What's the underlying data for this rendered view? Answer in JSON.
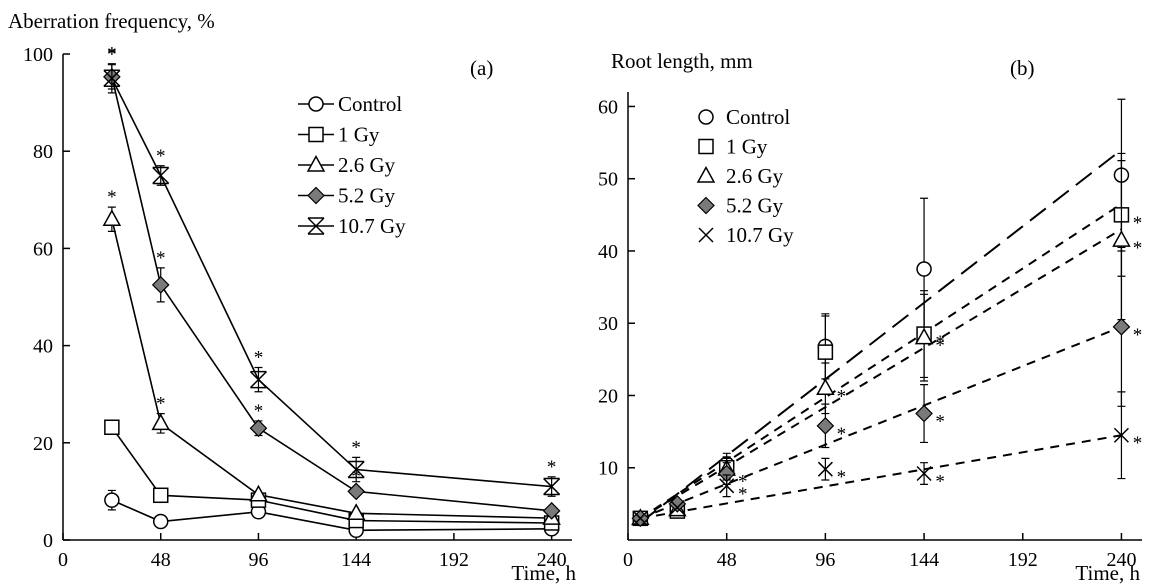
{
  "chart_data": [
    {
      "panel": "(a)",
      "type": "line",
      "ylabel": "Aberration frequency, %",
      "xlabel": "Time, h",
      "xlim": [
        0,
        250
      ],
      "ylim": [
        0,
        100
      ],
      "xticks": [
        0,
        48,
        96,
        144,
        192,
        240
      ],
      "yticks": [
        0,
        20,
        40,
        60,
        80,
        100
      ],
      "legend_position": "top-right",
      "series": [
        {
          "name": "Control",
          "marker": "circle",
          "x": [
            24,
            48,
            96,
            144,
            240
          ],
          "y": [
            8.2,
            3.8,
            5.8,
            2.0,
            2.3
          ],
          "err": [
            2.0,
            0,
            0,
            0,
            0
          ],
          "stars": [
            false,
            false,
            false,
            false,
            false
          ]
        },
        {
          "name": "1 Gy",
          "marker": "square",
          "x": [
            24,
            48,
            96,
            144,
            240
          ],
          "y": [
            23.2,
            9.2,
            8.2,
            4.0,
            3.5
          ],
          "err": [
            0,
            0,
            0,
            0,
            0
          ],
          "stars": [
            false,
            false,
            false,
            false,
            false
          ]
        },
        {
          "name": "2.6 Gy",
          "marker": "triangle",
          "x": [
            24,
            48,
            96,
            144,
            240
          ],
          "y": [
            66.0,
            24.0,
            9.3,
            5.5,
            4.5
          ],
          "err": [
            2.5,
            2.0,
            0,
            0,
            0
          ],
          "stars": [
            true,
            true,
            false,
            false,
            false
          ]
        },
        {
          "name": "5.2 Gy",
          "marker": "diamond",
          "x": [
            24,
            48,
            96,
            144,
            240
          ],
          "y": [
            95.3,
            52.5,
            23.0,
            10.0,
            6.0
          ],
          "err": [
            2.5,
            3.5,
            1.5,
            0,
            0
          ],
          "stars": [
            true,
            true,
            true,
            true,
            false
          ]
        },
        {
          "name": "10.7 Gy",
          "marker": "star-x",
          "x": [
            24,
            48,
            96,
            144,
            240
          ],
          "y": [
            95.0,
            75.0,
            33.0,
            14.5,
            11.0
          ],
          "err": [
            3.0,
            2.0,
            2.5,
            2.5,
            2.0
          ],
          "stars": [
            true,
            true,
            true,
            true,
            true
          ]
        }
      ]
    },
    {
      "panel": "(b)",
      "type": "scatter",
      "ylabel": "Root length, mm",
      "xlabel": "Time, h",
      "xlim": [
        0,
        250
      ],
      "ylim": [
        0,
        62
      ],
      "xticks": [
        0,
        48,
        96,
        144,
        192,
        240
      ],
      "yticks": [
        10,
        20,
        30,
        40,
        50,
        60
      ],
      "legend_position": "top-left",
      "series": [
        {
          "name": "Control",
          "marker": "circle",
          "x": [
            6,
            24,
            48,
            96,
            144,
            240
          ],
          "y": [
            3.0,
            4.2,
            10.5,
            26.8,
            37.5,
            50.5
          ],
          "err": [
            0,
            0,
            1.5,
            4.5,
            9.8,
            10.5
          ],
          "stars": [
            false,
            false,
            false,
            false,
            false,
            false
          ],
          "trend": [
            [
              6,
              2.4
            ],
            [
              240,
              54.0
            ]
          ],
          "dash": "long"
        },
        {
          "name": "1 Gy",
          "marker": "square",
          "x": [
            6,
            24,
            48,
            96,
            144,
            240
          ],
          "y": [
            3.0,
            4.0,
            10.0,
            26.0,
            28.5,
            45.0
          ],
          "err": [
            0,
            0,
            1.5,
            5.0,
            6.0,
            8.5
          ],
          "stars": [
            false,
            false,
            false,
            false,
            true,
            true
          ],
          "trend": [
            [
              6,
              3.0
            ],
            [
              240,
              46.5
            ]
          ],
          "dash": "short"
        },
        {
          "name": "2.6 Gy",
          "marker": "triangle",
          "x": [
            6,
            24,
            48,
            96,
            144,
            240
          ],
          "y": [
            3.0,
            4.2,
            9.8,
            21.0,
            28.0,
            41.5
          ],
          "err": [
            0,
            0,
            1.5,
            3.5,
            6.0,
            11.0
          ],
          "stars": [
            false,
            false,
            false,
            true,
            true,
            true
          ],
          "trend": [
            [
              6,
              3.0
            ],
            [
              240,
              43.0
            ]
          ],
          "dash": "short"
        },
        {
          "name": "5.2 Gy",
          "marker": "diamond",
          "x": [
            6,
            24,
            48,
            96,
            144,
            240
          ],
          "y": [
            3.0,
            5.0,
            9.2,
            15.8,
            17.5,
            29.5
          ],
          "err": [
            0,
            0,
            1.5,
            3.0,
            4.0,
            11.0
          ],
          "stars": [
            false,
            false,
            true,
            true,
            true,
            true
          ],
          "trend": [
            [
              6,
              3.0
            ],
            [
              240,
              29.5
            ]
          ],
          "dash": "short"
        },
        {
          "name": "10.7 Gy",
          "marker": "x",
          "x": [
            6,
            24,
            48,
            96,
            144,
            240
          ],
          "y": [
            3.0,
            4.5,
            7.5,
            9.8,
            9.2,
            14.5
          ],
          "err": [
            0,
            0,
            1.5,
            1.5,
            1.5,
            6.0
          ],
          "stars": [
            false,
            false,
            true,
            true,
            true,
            true
          ],
          "trend": [
            [
              6,
              3.0
            ],
            [
              240,
              14.5
            ]
          ],
          "dash": "short"
        }
      ]
    }
  ]
}
